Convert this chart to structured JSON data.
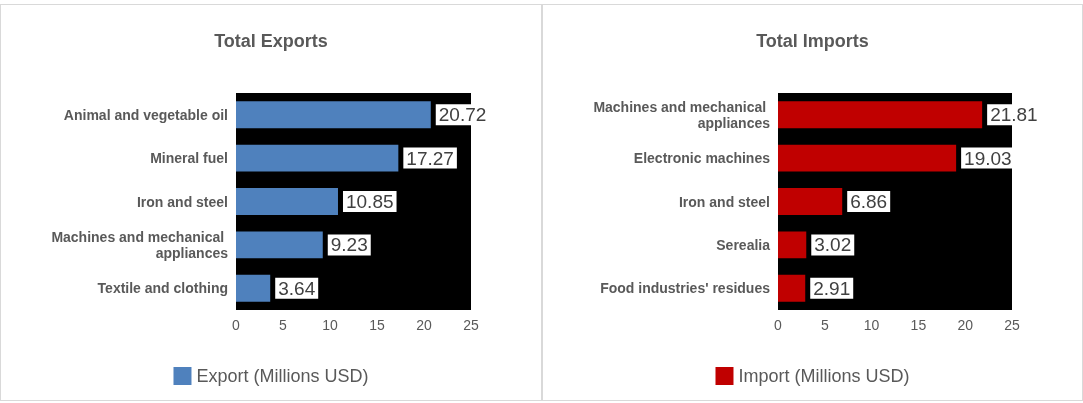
{
  "chart_data": [
    {
      "type": "bar",
      "orientation": "horizontal",
      "title": "Total Exports",
      "categories": [
        "Animal and vegetable oil",
        "Mineral fuel",
        "Iron and steel",
        "Machines and mechanical appliances",
        "Textile and clothing"
      ],
      "series": [
        {
          "name": "Export (Millions USD)",
          "color": "#4f81bd",
          "values": [
            20.72,
            17.27,
            10.85,
            9.23,
            3.64
          ]
        }
      ],
      "xlim": [
        0,
        25
      ],
      "xticks": [
        0,
        5,
        10,
        15,
        20,
        25
      ],
      "grid": false,
      "legend": "bottom",
      "data_labels": true
    },
    {
      "type": "bar",
      "orientation": "horizontal",
      "title": "Total Imports",
      "categories": [
        "Machines and mechanical appliances",
        "Electronic machines",
        "Iron and steel",
        "Serealia",
        "Food industries' residues"
      ],
      "series": [
        {
          "name": "Import (Millions USD)",
          "color": "#c00000",
          "values": [
            21.81,
            19.03,
            6.86,
            3.02,
            2.91
          ]
        }
      ],
      "xlim": [
        0,
        25
      ],
      "xticks": [
        0,
        5,
        10,
        15,
        20,
        25
      ],
      "grid": false,
      "legend": "bottom",
      "data_labels": true
    }
  ]
}
